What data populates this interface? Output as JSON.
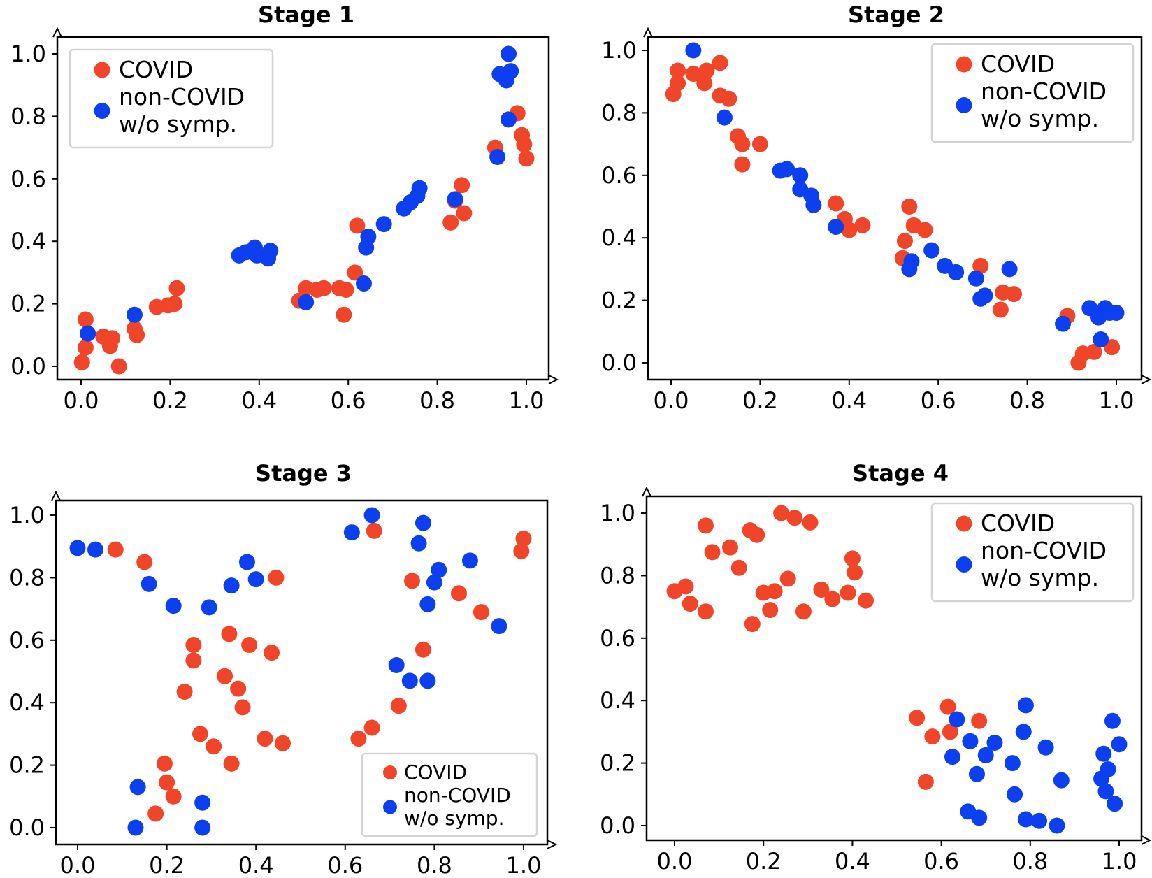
{
  "colors": {
    "covid": "#f1452a",
    "noncovid": "#0b3ff0"
  },
  "chart_data": [
    {
      "type": "scatter",
      "title": "Stage 1",
      "xlim": [
        0,
        1
      ],
      "ylim": [
        0,
        1
      ],
      "xticks": [
        "0.0",
        "0.2",
        "0.4",
        "0.6",
        "0.8",
        "1.0"
      ],
      "yticks": [
        "0.0",
        "0.2",
        "0.4",
        "0.6",
        "0.8",
        "1.0"
      ],
      "legend": {
        "position": "top-left",
        "entries": [
          "COVID",
          "non-COVID",
          "w/o symp."
        ]
      },
      "series": [
        {
          "name": "COVID",
          "points": [
            [
              0.002,
              0.013
            ],
            [
              0.01,
              0.06
            ],
            [
              0.01,
              0.15
            ],
            [
              0.05,
              0.095
            ],
            [
              0.065,
              0.065
            ],
            [
              0.07,
              0.09
            ],
            [
              0.085,
              0.0
            ],
            [
              0.12,
              0.12
            ],
            [
              0.125,
              0.1
            ],
            [
              0.17,
              0.19
            ],
            [
              0.195,
              0.195
            ],
            [
              0.21,
              0.2
            ],
            [
              0.215,
              0.25
            ],
            [
              0.49,
              0.21
            ],
            [
              0.505,
              0.25
            ],
            [
              0.53,
              0.245
            ],
            [
              0.545,
              0.25
            ],
            [
              0.58,
              0.25
            ],
            [
              0.59,
              0.165
            ],
            [
              0.595,
              0.245
            ],
            [
              0.615,
              0.3
            ],
            [
              0.62,
              0.45
            ],
            [
              0.83,
              0.46
            ],
            [
              0.84,
              0.53
            ],
            [
              0.855,
              0.58
            ],
            [
              0.86,
              0.49
            ],
            [
              0.93,
              0.7
            ],
            [
              0.98,
              0.81
            ],
            [
              0.99,
              0.74
            ],
            [
              0.995,
              0.71
            ],
            [
              1.0,
              0.665
            ]
          ]
        },
        {
          "name": "non-COVID w/o symp.",
          "points": [
            [
              0.015,
              0.105
            ],
            [
              0.12,
              0.165
            ],
            [
              0.355,
              0.355
            ],
            [
              0.37,
              0.365
            ],
            [
              0.39,
              0.38
            ],
            [
              0.395,
              0.355
            ],
            [
              0.42,
              0.345
            ],
            [
              0.425,
              0.37
            ],
            [
              0.505,
              0.205
            ],
            [
              0.635,
              0.265
            ],
            [
              0.64,
              0.38
            ],
            [
              0.645,
              0.415
            ],
            [
              0.68,
              0.455
            ],
            [
              0.725,
              0.505
            ],
            [
              0.74,
              0.525
            ],
            [
              0.755,
              0.545
            ],
            [
              0.76,
              0.57
            ],
            [
              0.84,
              0.535
            ],
            [
              0.935,
              0.67
            ],
            [
              0.94,
              0.935
            ],
            [
              0.955,
              0.915
            ],
            [
              0.96,
              0.79
            ],
            [
              0.96,
              1.0
            ],
            [
              0.965,
              0.945
            ]
          ]
        }
      ]
    },
    {
      "type": "scatter",
      "title": "Stage 2",
      "xlim": [
        0,
        1
      ],
      "ylim": [
        0,
        1
      ],
      "xticks": [
        "0.0",
        "0.2",
        "0.4",
        "0.6",
        "0.8",
        "1.0"
      ],
      "yticks": [
        "0.0",
        "0.2",
        "0.4",
        "0.6",
        "0.8",
        "1.0"
      ],
      "legend": {
        "position": "top-right",
        "entries": [
          "COVID",
          "non-COVID",
          "w/o symp."
        ]
      },
      "series": [
        {
          "name": "COVID",
          "points": [
            [
              0.005,
              0.86
            ],
            [
              0.015,
              0.895
            ],
            [
              0.015,
              0.935
            ],
            [
              0.05,
              0.925
            ],
            [
              0.07,
              0.92
            ],
            [
              0.075,
              0.895
            ],
            [
              0.08,
              0.935
            ],
            [
              0.11,
              0.96
            ],
            [
              0.11,
              0.855
            ],
            [
              0.13,
              0.845
            ],
            [
              0.15,
              0.725
            ],
            [
              0.16,
              0.7
            ],
            [
              0.16,
              0.635
            ],
            [
              0.2,
              0.7
            ],
            [
              0.37,
              0.51
            ],
            [
              0.39,
              0.46
            ],
            [
              0.4,
              0.425
            ],
            [
              0.43,
              0.44
            ],
            [
              0.52,
              0.335
            ],
            [
              0.525,
              0.39
            ],
            [
              0.535,
              0.5
            ],
            [
              0.545,
              0.44
            ],
            [
              0.57,
              0.425
            ],
            [
              0.695,
              0.31
            ],
            [
              0.74,
              0.17
            ],
            [
              0.745,
              0.225
            ],
            [
              0.77,
              0.22
            ],
            [
              0.89,
              0.15
            ],
            [
              0.915,
              0.0
            ],
            [
              0.925,
              0.03
            ],
            [
              0.95,
              0.035
            ],
            [
              0.99,
              0.05
            ]
          ]
        },
        {
          "name": "non-COVID w/o symp.",
          "points": [
            [
              0.05,
              1.0
            ],
            [
              0.12,
              0.785
            ],
            [
              0.245,
              0.615
            ],
            [
              0.26,
              0.62
            ],
            [
              0.29,
              0.6
            ],
            [
              0.29,
              0.555
            ],
            [
              0.315,
              0.535
            ],
            [
              0.32,
              0.505
            ],
            [
              0.37,
              0.435
            ],
            [
              0.535,
              0.3
            ],
            [
              0.54,
              0.325
            ],
            [
              0.585,
              0.36
            ],
            [
              0.615,
              0.31
            ],
            [
              0.64,
              0.29
            ],
            [
              0.685,
              0.27
            ],
            [
              0.695,
              0.205
            ],
            [
              0.705,
              0.215
            ],
            [
              0.76,
              0.3
            ],
            [
              0.88,
              0.125
            ],
            [
              0.94,
              0.175
            ],
            [
              0.96,
              0.145
            ],
            [
              0.965,
              0.075
            ],
            [
              0.975,
              0.175
            ],
            [
              0.985,
              0.16
            ],
            [
              1.0,
              0.16
            ]
          ]
        }
      ]
    },
    {
      "type": "scatter",
      "title": "Stage 3",
      "xlim": [
        0,
        1
      ],
      "ylim": [
        0,
        1
      ],
      "xticks": [
        "0.0",
        "0.2",
        "0.4",
        "0.6",
        "0.8",
        "1.0"
      ],
      "yticks": [
        "0.0",
        "0.2",
        "0.4",
        "0.6",
        "0.8",
        "1.0"
      ],
      "legend": {
        "position": "bottom-right",
        "entries": [
          "COVID",
          "non-COVID",
          "w/o symp."
        ]
      },
      "series": [
        {
          "name": "COVID",
          "points": [
            [
              0.085,
              0.89
            ],
            [
              0.15,
              0.85
            ],
            [
              0.175,
              0.045
            ],
            [
              0.195,
              0.205
            ],
            [
              0.2,
              0.145
            ],
            [
              0.215,
              0.1
            ],
            [
              0.24,
              0.435
            ],
            [
              0.26,
              0.585
            ],
            [
              0.26,
              0.535
            ],
            [
              0.275,
              0.3
            ],
            [
              0.305,
              0.26
            ],
            [
              0.33,
              0.485
            ],
            [
              0.34,
              0.62
            ],
            [
              0.345,
              0.205
            ],
            [
              0.36,
              0.445
            ],
            [
              0.37,
              0.385
            ],
            [
              0.385,
              0.585
            ],
            [
              0.42,
              0.285
            ],
            [
              0.435,
              0.56
            ],
            [
              0.445,
              0.8
            ],
            [
              0.46,
              0.27
            ],
            [
              0.63,
              0.285
            ],
            [
              0.66,
              0.32
            ],
            [
              0.665,
              0.95
            ],
            [
              0.72,
              0.39
            ],
            [
              0.75,
              0.79
            ],
            [
              0.775,
              0.57
            ],
            [
              0.855,
              0.75
            ],
            [
              0.905,
              0.69
            ],
            [
              0.995,
              0.885
            ],
            [
              1.0,
              0.925
            ]
          ]
        },
        {
          "name": "non-COVID w/o symp.",
          "points": [
            [
              0.0,
              0.895
            ],
            [
              0.04,
              0.89
            ],
            [
              0.13,
              0.0
            ],
            [
              0.135,
              0.13
            ],
            [
              0.16,
              0.78
            ],
            [
              0.215,
              0.71
            ],
            [
              0.28,
              0.08
            ],
            [
              0.28,
              0.0
            ],
            [
              0.295,
              0.705
            ],
            [
              0.345,
              0.775
            ],
            [
              0.38,
              0.85
            ],
            [
              0.4,
              0.795
            ],
            [
              0.615,
              0.945
            ],
            [
              0.66,
              1.0
            ],
            [
              0.715,
              0.52
            ],
            [
              0.745,
              0.47
            ],
            [
              0.765,
              0.91
            ],
            [
              0.775,
              0.975
            ],
            [
              0.785,
              0.715
            ],
            [
              0.785,
              0.47
            ],
            [
              0.8,
              0.785
            ],
            [
              0.81,
              0.825
            ],
            [
              0.88,
              0.855
            ],
            [
              0.945,
              0.645
            ]
          ]
        }
      ]
    },
    {
      "type": "scatter",
      "title": "Stage 4",
      "xlim": [
        0,
        1
      ],
      "ylim": [
        0,
        1
      ],
      "xticks": [
        "0.0",
        "0.2",
        "0.4",
        "0.6",
        "0.8",
        "1.0"
      ],
      "yticks": [
        "0.0",
        "0.2",
        "0.4",
        "0.6",
        "0.8",
        "1.0"
      ],
      "legend": {
        "position": "top-right",
        "entries": [
          "COVID",
          "non-COVID",
          "w/o symp."
        ]
      },
      "series": [
        {
          "name": "COVID",
          "points": [
            [
              0.0,
              0.75
            ],
            [
              0.025,
              0.765
            ],
            [
              0.035,
              0.71
            ],
            [
              0.07,
              0.96
            ],
            [
              0.07,
              0.685
            ],
            [
              0.085,
              0.875
            ],
            [
              0.125,
              0.89
            ],
            [
              0.145,
              0.825
            ],
            [
              0.17,
              0.945
            ],
            [
              0.175,
              0.645
            ],
            [
              0.185,
              0.93
            ],
            [
              0.2,
              0.745
            ],
            [
              0.215,
              0.69
            ],
            [
              0.225,
              0.75
            ],
            [
              0.24,
              1.0
            ],
            [
              0.255,
              0.79
            ],
            [
              0.27,
              0.985
            ],
            [
              0.29,
              0.685
            ],
            [
              0.305,
              0.97
            ],
            [
              0.33,
              0.755
            ],
            [
              0.355,
              0.725
            ],
            [
              0.39,
              0.745
            ],
            [
              0.4,
              0.855
            ],
            [
              0.405,
              0.81
            ],
            [
              0.43,
              0.72
            ],
            [
              0.545,
              0.345
            ],
            [
              0.565,
              0.14
            ],
            [
              0.58,
              0.285
            ],
            [
              0.615,
              0.38
            ],
            [
              0.62,
              0.3
            ],
            [
              0.685,
              0.335
            ]
          ]
        },
        {
          "name": "non-COVID w/o symp.",
          "points": [
            [
              0.625,
              0.22
            ],
            [
              0.635,
              0.34
            ],
            [
              0.66,
              0.045
            ],
            [
              0.665,
              0.27
            ],
            [
              0.68,
              0.165
            ],
            [
              0.685,
              0.025
            ],
            [
              0.7,
              0.225
            ],
            [
              0.72,
              0.265
            ],
            [
              0.76,
              0.2
            ],
            [
              0.765,
              0.1
            ],
            [
              0.785,
              0.3
            ],
            [
              0.79,
              0.385
            ],
            [
              0.79,
              0.02
            ],
            [
              0.82,
              0.015
            ],
            [
              0.835,
              0.25
            ],
            [
              0.86,
              0.0
            ],
            [
              0.87,
              0.145
            ],
            [
              0.96,
              0.15
            ],
            [
              0.965,
              0.23
            ],
            [
              0.97,
              0.11
            ],
            [
              0.975,
              0.18
            ],
            [
              0.985,
              0.335
            ],
            [
              0.99,
              0.07
            ],
            [
              1.0,
              0.26
            ]
          ]
        }
      ]
    }
  ]
}
